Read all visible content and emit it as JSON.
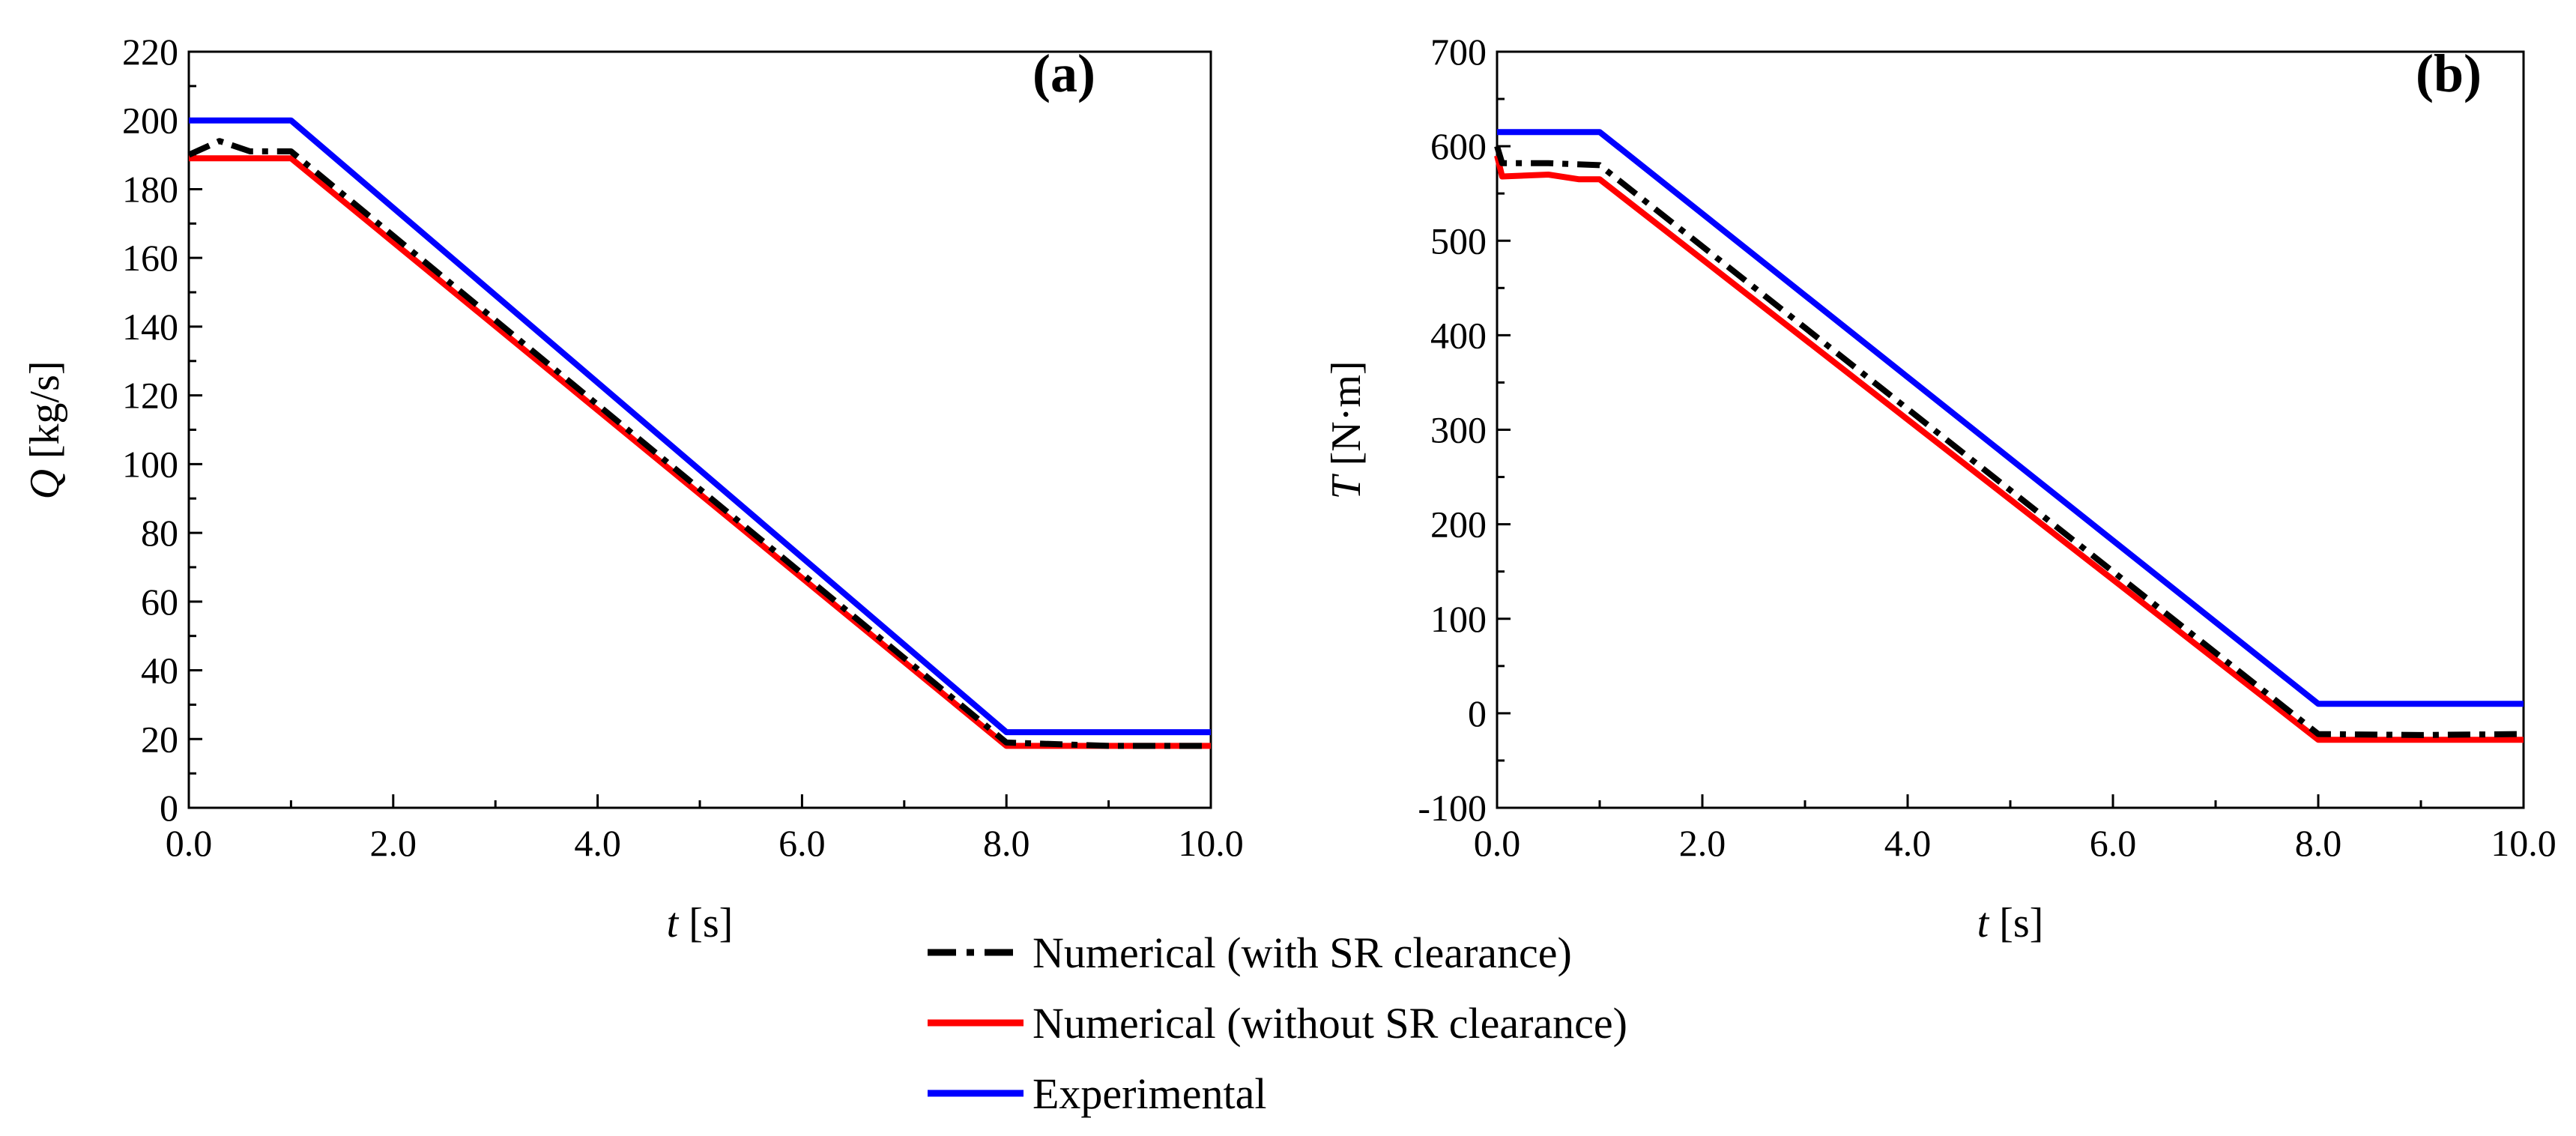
{
  "legend": {
    "entries": [
      {
        "label": "Numerical (with SR clearance)",
        "color": "#000000",
        "style": "dash-dot"
      },
      {
        "label": "Numerical (without SR clearance)",
        "color": "#ff0000",
        "style": "solid"
      },
      {
        "label": "Experimental",
        "color": "#0000ff",
        "style": "solid"
      }
    ]
  },
  "chart_data": [
    {
      "type": "line",
      "panel_label": "(a)",
      "xlabel_var": "t",
      "xlabel_unit": " [s]",
      "ylabel_var": "Q",
      "ylabel_unit": " [kg/s]",
      "xlim": [
        0,
        10
      ],
      "ylim": [
        0,
        220
      ],
      "x_ticks": [
        0,
        2,
        4,
        6,
        8,
        10
      ],
      "x_tick_labels": [
        "0.0",
        "2.0",
        "4.0",
        "6.0",
        "8.0",
        "10.0"
      ],
      "y_ticks": [
        0,
        20,
        40,
        60,
        80,
        100,
        120,
        140,
        160,
        180,
        200,
        220
      ],
      "y_tick_labels": [
        "0",
        "20",
        "40",
        "60",
        "80",
        "100",
        "120",
        "140",
        "160",
        "180",
        "200",
        "220"
      ],
      "series": [
        {
          "name": "Experimental",
          "color": "#0000ff",
          "style": "solid",
          "x": [
            0,
            1.0,
            8.0,
            10.0
          ],
          "y": [
            200,
            200,
            22,
            22
          ]
        },
        {
          "name": "Numerical (without SR clearance)",
          "color": "#ff0000",
          "style": "solid",
          "x": [
            0,
            1.0,
            8.0,
            10.0
          ],
          "y": [
            189,
            189,
            18,
            18
          ]
        },
        {
          "name": "Numerical (with SR clearance)",
          "color": "#000000",
          "style": "dash-dot",
          "x": [
            0,
            0.3,
            0.6,
            1.0,
            8.0,
            9.0,
            10.0
          ],
          "y": [
            190,
            194,
            191,
            191,
            19,
            18,
            18
          ]
        }
      ]
    },
    {
      "type": "line",
      "panel_label": "(b)",
      "xlabel_var": "t",
      "xlabel_unit": " [s]",
      "ylabel_var": "T",
      "ylabel_unit": " [N·m]",
      "xlim": [
        0,
        10
      ],
      "ylim": [
        -100,
        700
      ],
      "x_ticks": [
        0,
        2,
        4,
        6,
        8,
        10
      ],
      "x_tick_labels": [
        "0.0",
        "2.0",
        "4.0",
        "6.0",
        "8.0",
        "10.0"
      ],
      "y_ticks": [
        -100,
        0,
        100,
        200,
        300,
        400,
        500,
        600,
        700
      ],
      "y_tick_labels": [
        "-100",
        "0",
        "100",
        "200",
        "300",
        "400",
        "500",
        "600",
        "700"
      ],
      "series": [
        {
          "name": "Experimental",
          "color": "#0000ff",
          "style": "solid",
          "x": [
            0,
            1.0,
            8.0,
            10.0
          ],
          "y": [
            615,
            615,
            10,
            10
          ]
        },
        {
          "name": "Numerical (without SR clearance)",
          "color": "#ff0000",
          "style": "solid",
          "x": [
            0,
            0.05,
            0.5,
            0.8,
            1.0,
            8.0,
            10.0
          ],
          "y": [
            590,
            568,
            570,
            565,
            565,
            -28,
            -28
          ]
        },
        {
          "name": "Numerical (with SR clearance)",
          "color": "#000000",
          "style": "dash-dot",
          "x": [
            0,
            0.05,
            0.5,
            1.0,
            8.0,
            9.0,
            10.0
          ],
          "y": [
            600,
            582,
            582,
            580,
            -22,
            -23,
            -22
          ]
        }
      ]
    }
  ]
}
